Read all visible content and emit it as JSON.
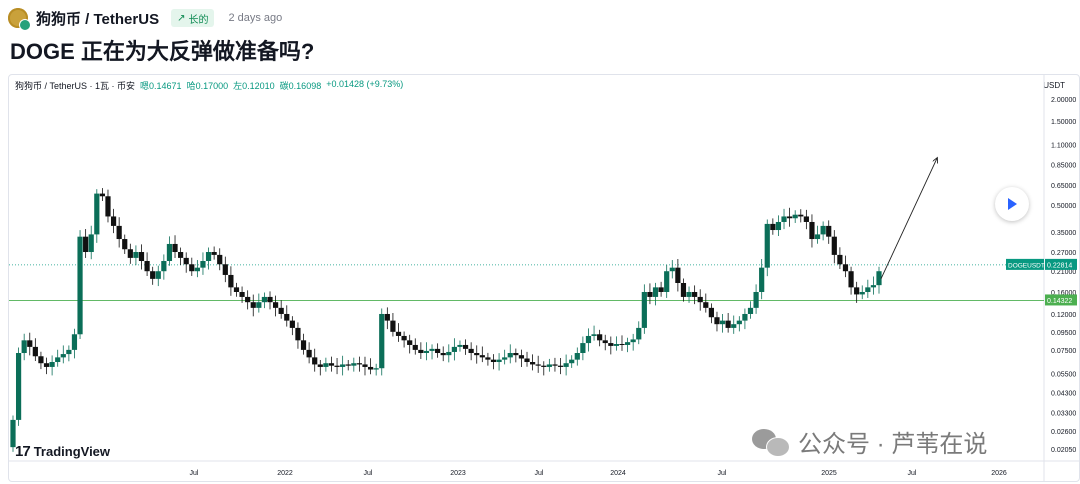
{
  "header": {
    "symbol": "狗狗币 / TetherUS",
    "badge": "长的",
    "badge_icon": "arrow-up-right-icon",
    "time": "2 days ago",
    "title": "DOGE 正在为大反弹做准备吗?"
  },
  "chart_data": {
    "type": "candlestick",
    "legend": {
      "symbol": "狗狗币 / TetherUS · 1瓦 · 币安",
      "open": "嗯0.14671",
      "high": "哈0.17000",
      "low": "左0.12010",
      "close": "碳0.16098",
      "change": "+0.01428 (+9.73%)"
    },
    "y_axis_title": "USDT",
    "y_scale": "log",
    "y_ticks": [
      "2.00000",
      "1.50000",
      "1.10000",
      "0.85000",
      "0.65000",
      "0.50000",
      "0.35000",
      "0.27000",
      "0.21000",
      "0.16000",
      "0.12000",
      "0.09500",
      "0.07500",
      "0.05500",
      "0.04300",
      "0.03300",
      "0.02600",
      "0.02050"
    ],
    "x_ticks": [
      "Jul",
      "2022",
      "Jul",
      "2023",
      "Jul",
      "2024",
      "Jul",
      "2025",
      "Jul",
      "2026"
    ],
    "price_labels": [
      {
        "text": "DOGEUSDT",
        "value": "0.22814",
        "color": "#089981"
      },
      {
        "value": "0.14322",
        "color": "#4caf50"
      }
    ],
    "horizontal_lines": [
      {
        "value": 0.22814,
        "style": "dotted",
        "color": "#089981"
      },
      {
        "value": 0.14322,
        "style": "solid",
        "color": "#4caf50"
      }
    ],
    "projection_arrow": {
      "from_date": "2025-04",
      "from_price": 0.19,
      "to_date": "2025-09",
      "to_price": 0.92
    },
    "up_color": "#0b6e58",
    "down_color": "#111111",
    "grid": false
  },
  "branding": {
    "tv_mark": "17",
    "tv_text": "TradingView",
    "watermark": "公众号 · 芦苇在说"
  }
}
